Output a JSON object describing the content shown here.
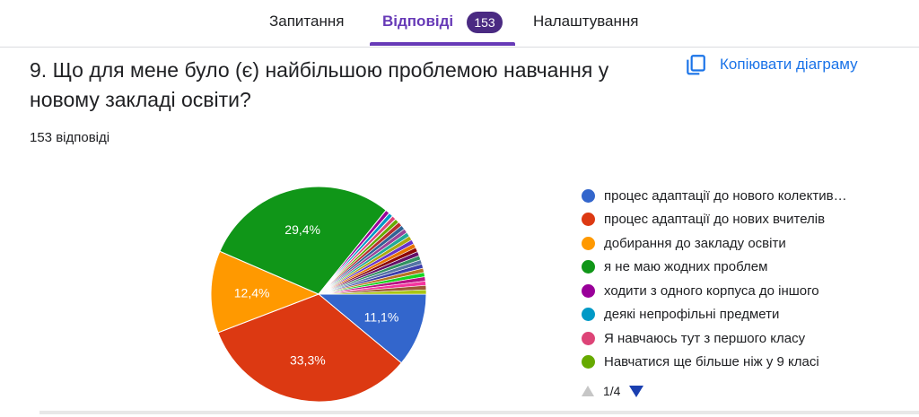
{
  "tabs": {
    "questions": "Запитання",
    "answers": "Відповіді",
    "answers_count": "153",
    "settings": "Налаштування"
  },
  "question": {
    "title": "9. Що для мене було (є) найбільшою проблемою навчання у новому закладі освіти?",
    "responses": "153 відповіді"
  },
  "copy_button": {
    "label": "Копіювати діаграму",
    "icon": "copy-icon"
  },
  "pager": {
    "text": "1/4",
    "prev_icon": "triangle-up-icon",
    "next_icon": "triangle-down-icon"
  },
  "colors": {
    "accent": "#673ab7",
    "link": "#1a73e8"
  },
  "chart_data": {
    "type": "pie",
    "title": "",
    "legend_position": "right",
    "series": [
      {
        "name": "процес адаптації до нового колектив…",
        "value": 11.1,
        "label": "11,1%",
        "color": "#3366cc"
      },
      {
        "name": "процес адаптації до нових вчителів",
        "value": 33.3,
        "label": "33,3%",
        "color": "#dc3912"
      },
      {
        "name": "добирання до закладу освіти",
        "value": 12.4,
        "label": "12,4%",
        "color": "#ff9900"
      },
      {
        "name": "я не маю жодних проблем",
        "value": 29.4,
        "label": "29,4%",
        "color": "#109618"
      },
      {
        "name": "ходити з одного корпуса до іншого",
        "value": 0.65,
        "label": "",
        "color": "#990099"
      },
      {
        "name": "деякі непрофільні предмети",
        "value": 0.65,
        "label": "",
        "color": "#0099c6"
      },
      {
        "name": "Я навчаюсь тут з першого класу",
        "value": 0.65,
        "label": "",
        "color": "#dd4477"
      },
      {
        "name": "Навчатися ще більше ніж у 9 класі",
        "value": 0.65,
        "label": "",
        "color": "#66aa00"
      }
    ],
    "other_small_slices": {
      "values": [
        0.65,
        0.65,
        0.65,
        0.65,
        0.65,
        0.65,
        0.65,
        0.65,
        0.65,
        0.65,
        0.65,
        0.65,
        0.65,
        0.65,
        0.65,
        0.65,
        0.65,
        0.65
      ],
      "colors": [
        "#b82e2e",
        "#316395",
        "#994499",
        "#22aa99",
        "#aaaa11",
        "#6633cc",
        "#e67300",
        "#8b0707",
        "#651067",
        "#329262",
        "#5574a6",
        "#3b3eac",
        "#b77322",
        "#16d620",
        "#b91383",
        "#f4359e",
        "#9c5935",
        "#a9c413"
      ]
    }
  }
}
